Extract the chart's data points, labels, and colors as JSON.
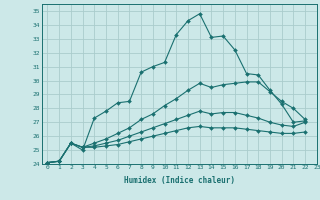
{
  "xlabel": "Humidex (Indice chaleur)",
  "ylabel": "",
  "xlim": [
    -0.5,
    23
  ],
  "ylim": [
    24,
    35.5
  ],
  "xticks": [
    0,
    1,
    2,
    3,
    4,
    5,
    6,
    7,
    8,
    9,
    10,
    11,
    12,
    13,
    14,
    15,
    16,
    17,
    18,
    19,
    20,
    21,
    22,
    23
  ],
  "yticks": [
    24,
    25,
    26,
    27,
    28,
    29,
    30,
    31,
    32,
    33,
    34,
    35
  ],
  "bg_color": "#cce8e8",
  "grid_color": "#aacccc",
  "line_color": "#1a7070",
  "series": [
    [
      24.1,
      24.2,
      25.5,
      25.0,
      27.3,
      27.8,
      28.4,
      28.5,
      30.6,
      31.0,
      31.3,
      33.3,
      34.3,
      34.8,
      33.1,
      33.2,
      32.2,
      30.5,
      30.4,
      29.3,
      28.3,
      27.0,
      27.1,
      null
    ],
    [
      24.1,
      24.2,
      25.5,
      25.2,
      25.5,
      25.8,
      26.2,
      26.6,
      27.2,
      27.6,
      28.2,
      28.7,
      29.3,
      29.8,
      29.5,
      29.7,
      29.8,
      29.9,
      29.9,
      29.2,
      28.5,
      28.0,
      27.2,
      null
    ],
    [
      24.1,
      24.2,
      25.5,
      25.2,
      25.3,
      25.5,
      25.7,
      26.0,
      26.3,
      26.6,
      26.9,
      27.2,
      27.5,
      27.8,
      27.6,
      27.7,
      27.7,
      27.5,
      27.3,
      27.0,
      26.8,
      26.7,
      27.0,
      null
    ],
    [
      24.1,
      24.2,
      25.5,
      25.2,
      25.2,
      25.3,
      25.4,
      25.6,
      25.8,
      26.0,
      26.2,
      26.4,
      26.6,
      26.7,
      26.6,
      26.6,
      26.6,
      26.5,
      26.4,
      26.3,
      26.2,
      26.2,
      26.3,
      null
    ]
  ]
}
